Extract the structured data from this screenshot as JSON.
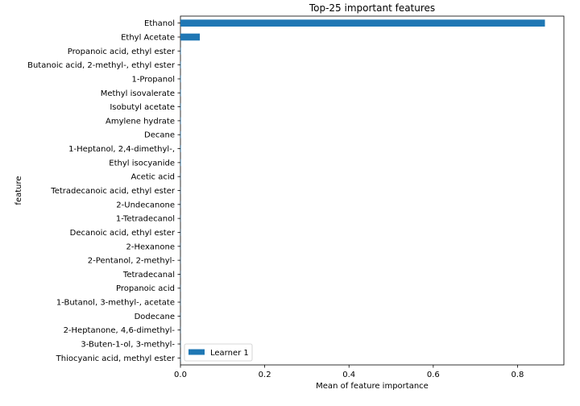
{
  "chart_data": {
    "type": "bar",
    "orientation": "horizontal",
    "title": "Top-25 important features",
    "xlabel": "Mean of feature importance",
    "ylabel": "feature",
    "xlim": [
      0,
      0.91
    ],
    "xticks": [
      "0.0",
      "0.2",
      "0.4",
      "0.6",
      "0.8"
    ],
    "grid": false,
    "legend_position": "lower-left",
    "categories": [
      "Ethanol",
      "Ethyl Acetate",
      "Propanoic acid, ethyl ester",
      "Butanoic acid, 2-methyl-, ethyl ester",
      "1-Propanol",
      "Methyl isovalerate",
      "Isobutyl acetate",
      "Amylene hydrate",
      "Decane",
      "1-Heptanol, 2,4-dimethyl-,",
      "Ethyl isocyanide",
      "Acetic acid",
      "Tetradecanoic acid, ethyl ester",
      "2-Undecanone",
      "1-Tetradecanol",
      "Decanoic acid, ethyl ester",
      "2-Hexanone",
      "2-Pentanol, 2-methyl-",
      "Tetradecanal",
      "Propanoic acid",
      "1-Butanol, 3-methyl-, acetate",
      "Dodecane",
      "2-Heptanone, 4,6-dimethyl-",
      "3-Buten-1-ol, 3-methyl-",
      "Thiocyanic acid, methyl ester"
    ],
    "series": [
      {
        "name": "Learner 1",
        "color": "#1f77b4",
        "values": [
          0.865,
          0.046,
          0.001,
          0.001,
          0.001,
          0.001,
          0.001,
          0.001,
          0.001,
          0.001,
          0.001,
          0.0005,
          0.0005,
          0.0005,
          0.0005,
          0.0005,
          0.0005,
          0.0005,
          0.0005,
          0.0005,
          0.0005,
          0.0005,
          0.0005,
          0.0005,
          0.0005
        ]
      }
    ]
  }
}
